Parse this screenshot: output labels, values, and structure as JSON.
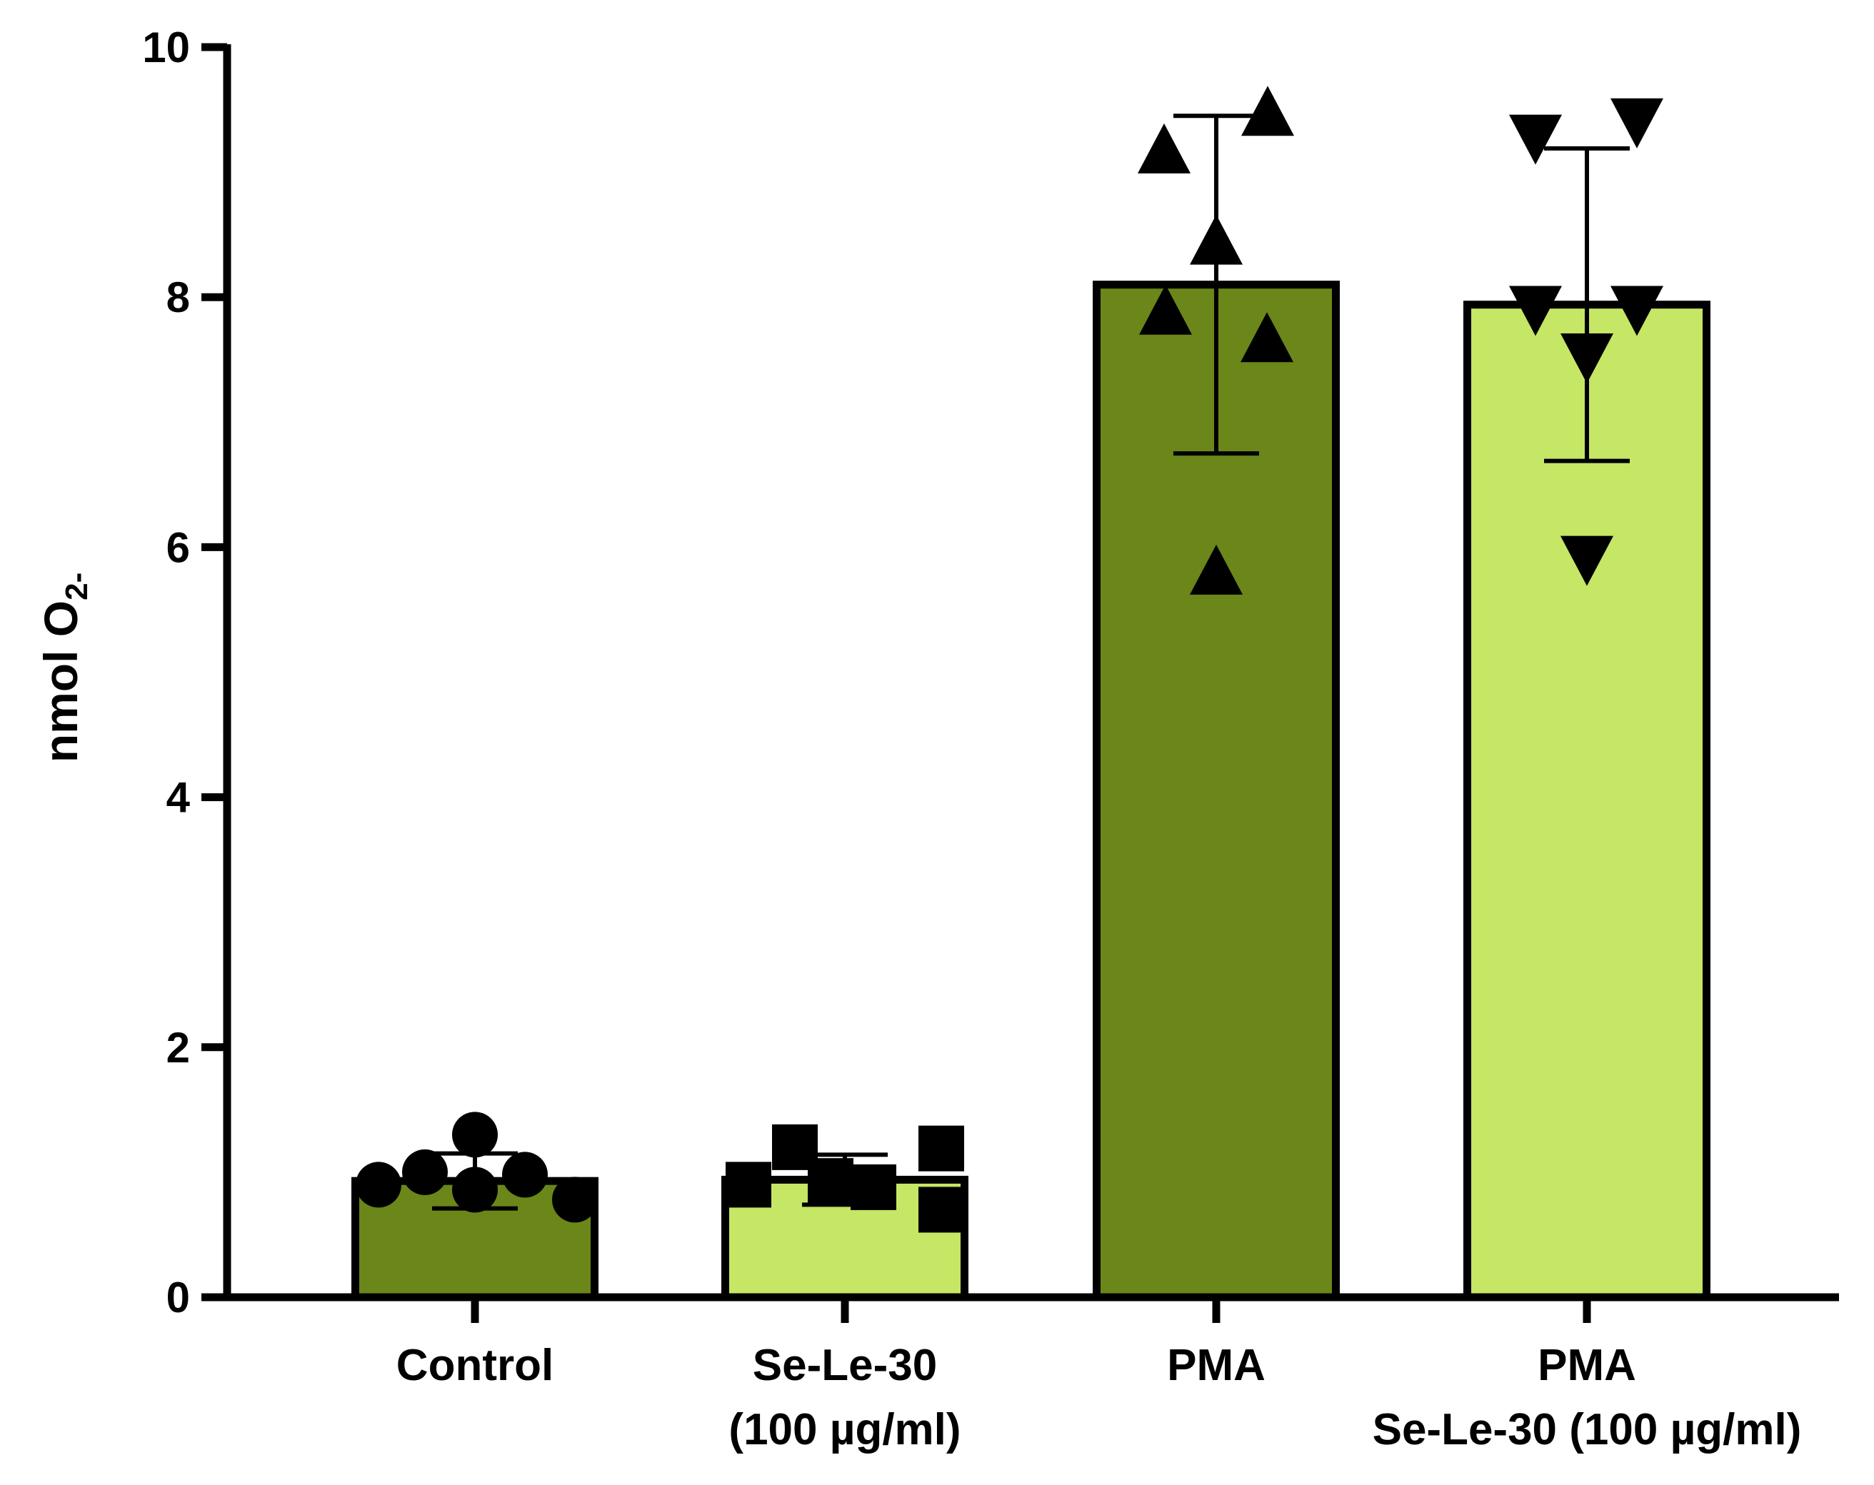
{
  "chart_data": {
    "type": "bar",
    "title": "",
    "xlabel": "",
    "ylabel": {
      "main": "nmol O",
      "sub": "2-"
    },
    "ylim": [
      0,
      10
    ],
    "yticks": [
      0,
      2,
      4,
      6,
      8,
      10
    ],
    "ytick_labels": [
      "0",
      "2",
      "4",
      "6",
      "8",
      "10"
    ],
    "categories": [
      {
        "lines": [
          "Control"
        ]
      },
      {
        "lines": [
          "Se-Le-30",
          "(100 µg/ml)"
        ]
      },
      {
        "lines": [
          "PMA"
        ]
      },
      {
        "lines": [
          "PMA",
          "Se-Le-30 (100 µg/ml)"
        ]
      }
    ],
    "values": [
      0.93,
      0.94,
      8.1,
      7.94
    ],
    "error_sd": [
      0.22,
      0.2,
      1.35,
      1.25
    ],
    "bar_colors": [
      "#6b8619",
      "#c6e665",
      "#6b8619",
      "#c6e665"
    ],
    "markers": [
      "circle",
      "square",
      "triangle-up",
      "triangle-down"
    ],
    "points": [
      [
        0.9,
        1.0,
        1.3,
        0.86,
        0.98,
        0.78
      ],
      [
        0.9,
        1.2,
        0.93,
        0.88,
        1.19,
        0.7
      ],
      [
        9.15,
        9.45,
        8.42,
        7.86,
        7.64,
        5.78
      ],
      [
        9.3,
        9.43,
        7.93,
        7.93,
        7.55,
        5.93
      ]
    ],
    "grid": false,
    "legend": "none"
  }
}
